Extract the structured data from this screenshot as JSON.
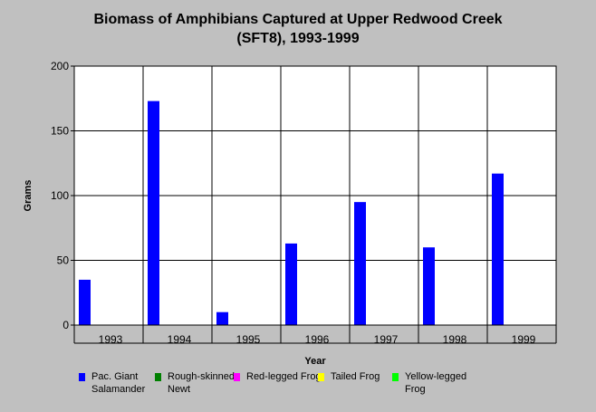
{
  "chart_data": {
    "type": "bar",
    "title": "Biomass of Amphibians Captured at Upper Redwood Creek",
    "subtitle": "(SFT8), 1993-1999",
    "xlabel": "Year",
    "ylabel": "Grams",
    "ylim": [
      0,
      200
    ],
    "yticks": [
      "0",
      "50",
      "100",
      "150",
      "200"
    ],
    "categories": [
      "1993",
      "1994",
      "1995",
      "1996",
      "1997",
      "1998",
      "1999"
    ],
    "grid": true,
    "legend_position": "bottom",
    "series": [
      {
        "name": "Pac. Giant Salamander",
        "color": "#0000ff",
        "values": [
          35,
          173,
          10,
          63,
          95,
          60,
          117
        ]
      },
      {
        "name": "Rough-skinned Newt",
        "color": "#008000",
        "values": [
          0,
          0,
          0,
          0,
          0,
          0,
          0
        ]
      },
      {
        "name": "Red-legged Frog",
        "color": "#ff00ff",
        "values": [
          0,
          0,
          0,
          0,
          0,
          0,
          0
        ]
      },
      {
        "name": "Tailed Frog",
        "color": "#ffff00",
        "values": [
          0,
          0,
          0,
          0,
          0,
          0,
          0
        ]
      },
      {
        "name": "Yellow-legged Frog",
        "color": "#00ff00",
        "values": [
          0,
          0,
          0,
          0,
          0,
          0,
          0
        ]
      }
    ]
  }
}
